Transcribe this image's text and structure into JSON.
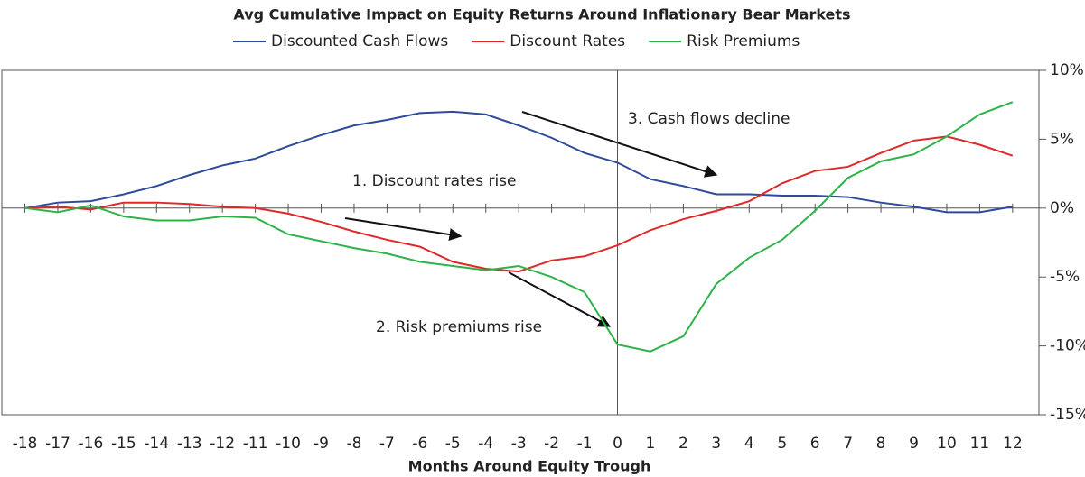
{
  "chart_data": {
    "type": "line",
    "title": "Avg Cumulative Impact on Equity Returns Around Inflationary Bear Markets",
    "x_label": "Months Around Equity Trough",
    "x": [
      -18,
      -17,
      -16,
      -15,
      -14,
      -13,
      -12,
      -11,
      -10,
      -9,
      -8,
      -7,
      -6,
      -5,
      -4,
      -3,
      -2,
      -1,
      0,
      1,
      2,
      3,
      4,
      5,
      6,
      7,
      8,
      9,
      10,
      11,
      12
    ],
    "xlim": [
      -18.7,
      12.8
    ],
    "xticks": [
      -18,
      -17,
      -16,
      -15,
      -14,
      -13,
      -12,
      -11,
      -10,
      -9,
      -8,
      -7,
      -6,
      -5,
      -4,
      -3,
      -2,
      -1,
      0,
      1,
      2,
      3,
      4,
      5,
      6,
      7,
      8,
      9,
      10,
      11,
      12
    ],
    "ylim": [
      -15,
      10
    ],
    "yticks": [
      {
        "value": 10,
        "label": "10%"
      },
      {
        "value": 5,
        "label": "5%"
      },
      {
        "value": 0,
        "label": "0%"
      },
      {
        "value": -5,
        "label": "-5%"
      },
      {
        "value": -10,
        "label": "-10%"
      },
      {
        "value": -15,
        "label": "-15%"
      }
    ],
    "series": [
      {
        "name": "Discounted Cash Flows",
        "color": "#2e4a9a",
        "values": [
          0,
          0.4,
          0.5,
          1.0,
          1.6,
          2.4,
          3.1,
          3.6,
          4.5,
          5.3,
          6.0,
          6.4,
          6.9,
          7.0,
          6.8,
          6.0,
          5.1,
          4.0,
          3.3,
          2.1,
          1.6,
          1.0,
          1.0,
          0.9,
          0.9,
          0.8,
          0.4,
          0.1,
          -0.3,
          -0.3,
          0.1
        ]
      },
      {
        "name": "Discount Rates",
        "color": "#e02828",
        "values": [
          0,
          0.1,
          -0.1,
          0.4,
          0.4,
          0.3,
          0.1,
          0,
          -0.4,
          -1.0,
          -1.7,
          -2.3,
          -2.8,
          -3.9,
          -4.4,
          -4.6,
          -3.8,
          -3.5,
          -2.7,
          -1.6,
          -0.8,
          -0.2,
          0.5,
          1.8,
          2.7,
          3.0,
          4.0,
          4.9,
          5.2,
          4.6,
          3.8
        ]
      },
      {
        "name": "Risk Premiums",
        "color": "#2eb34a",
        "values": [
          0,
          -0.3,
          0.2,
          -0.6,
          -0.9,
          -0.9,
          -0.6,
          -0.7,
          -1.9,
          -2.4,
          -2.9,
          -3.3,
          -3.9,
          -4.2,
          -4.5,
          -4.2,
          -5.0,
          -6.1,
          -9.9,
          -10.4,
          -9.3,
          -5.5,
          -3.6,
          -2.3,
          -0.2,
          2.2,
          3.4,
          3.9,
          5.2,
          6.8,
          7.7
        ]
      }
    ],
    "annotations": [
      "1. Discount rates rise",
      "2. Risk premiums rise",
      "3. Cash flows decline"
    ]
  }
}
